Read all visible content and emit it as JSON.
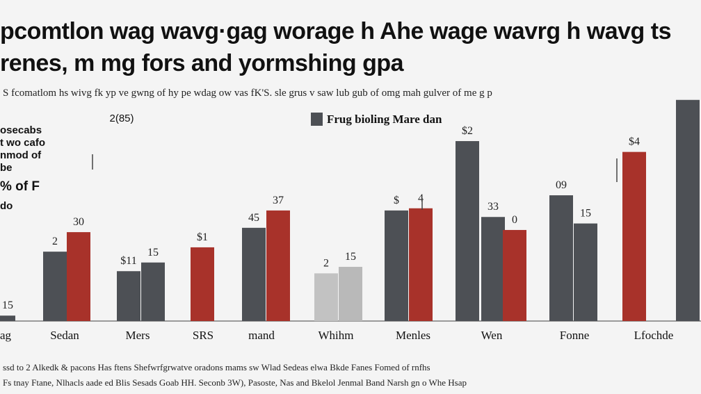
{
  "title": {
    "line1": "pcomtlon wag wavg·gag worage h Ahe wage wavrg h wavg ts",
    "line2": "renes, m mg fors and yormshing gpa"
  },
  "subtitle": "S fcomatlom hs wivg fk yp ve gwng of hy pe wdag ow vas fK'S. sle grus v saw lub gub of omg mah gulver of me g p",
  "footnote": {
    "line1": "ssd to 2 Alkedk & pacons Has ftens Shefwrfgrwatve oradons mams sw Wlad Sedeas elwa Bkde Fanes Fomed of rnfhs",
    "line2": "Fs tnay Ftane, Nlhacls aade ed Blis Sesads Goab HH. Seconb 3W), Pasoste, Nas and Bkelol Jenmal Band Narsh gn o Whe Hsap"
  },
  "colors": {
    "dark": "#4d5055",
    "red": "#a8322a",
    "light": "#c2c2c2",
    "light2": "#b9b9b9"
  },
  "chart_data": {
    "type": "bar",
    "categories": [
      "ag",
      "Sedan",
      "Mers",
      "SRS",
      "mand",
      "Whihm",
      "Menles",
      "Wen",
      "Fonne",
      "Lfochde"
    ],
    "ylim": [
      0,
      100
    ],
    "legend": {
      "label": "Frug bioling Mare dan",
      "placement": "top-center"
    },
    "yaxis_caption": [
      "2(85)",
      "osecabs",
      "t wo cafo",
      "nmod of",
      "be",
      "% of F",
      "do"
    ],
    "bars": [
      {
        "category": "ag",
        "color": "dark",
        "value": 2.5,
        "label": "15"
      },
      {
        "category": "Sedan",
        "color": "dark",
        "value": 32,
        "label": "2"
      },
      {
        "category": "Sedan",
        "color": "red",
        "value": 41,
        "label": "30"
      },
      {
        "category": "Mers",
        "color": "dark",
        "value": 23,
        "label": "$11"
      },
      {
        "category": "Mers",
        "color": "dark",
        "value": 27,
        "label": "15"
      },
      {
        "category": "SRS",
        "color": "red",
        "value": 34,
        "label": "$1"
      },
      {
        "category": "mand",
        "color": "dark",
        "value": 43,
        "label": "45"
      },
      {
        "category": "mand",
        "color": "red",
        "value": 51,
        "label": "37"
      },
      {
        "category": "Whihm",
        "color": "light",
        "value": 22,
        "label": "2"
      },
      {
        "category": "Whihm",
        "color": "light2",
        "value": 25,
        "label": "15"
      },
      {
        "category": "Menles",
        "color": "dark",
        "value": 51,
        "label": "$"
      },
      {
        "category": "Menles",
        "color": "red",
        "value": 52,
        "label": "4"
      },
      {
        "category": "Wen",
        "color": "dark",
        "value": 83,
        "label": "$2"
      },
      {
        "category": "Wen",
        "color": "dark",
        "value": 48,
        "label": "33"
      },
      {
        "category": "Wen",
        "color": "red",
        "value": 42,
        "label": "0"
      },
      {
        "category": "Fonne",
        "color": "dark",
        "value": 58,
        "label": "09"
      },
      {
        "category": "Fonne",
        "color": "dark",
        "value": 45,
        "label": "15"
      },
      {
        "category": "Lfochde",
        "color": "red",
        "value": 78,
        "label": "$4"
      },
      {
        "category": "Lfochde",
        "color": "dark",
        "value": 102,
        "label": ""
      }
    ]
  }
}
